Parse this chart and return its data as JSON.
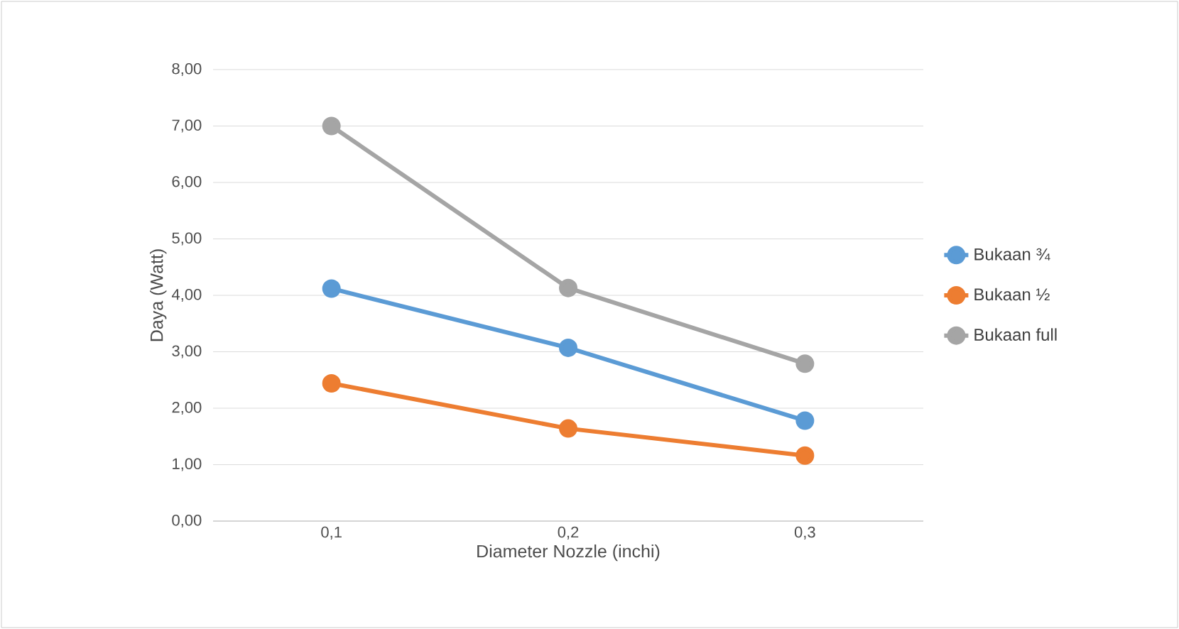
{
  "chart_data": {
    "type": "line",
    "xlabel": "Diameter Nozzle (inchi)",
    "ylabel": "Daya (Watt)",
    "categories": [
      "0,1",
      "0,2",
      "0,3"
    ],
    "series": [
      {
        "name": "Bukaan ¾",
        "color": "#5b9bd5",
        "values": [
          4.12,
          3.07,
          1.78
        ]
      },
      {
        "name": "Bukaan ½",
        "color": "#ed7d31",
        "values": [
          2.44,
          1.64,
          1.16
        ]
      },
      {
        "name": "Bukaan full",
        "color": "#a5a5a5",
        "values": [
          7.0,
          4.13,
          2.79
        ]
      }
    ],
    "ylim": [
      0,
      8
    ],
    "yticks": [
      {
        "value": 0,
        "label": "0,00"
      },
      {
        "value": 1,
        "label": "1,00"
      },
      {
        "value": 2,
        "label": "2,00"
      },
      {
        "value": 3,
        "label": "3,00"
      },
      {
        "value": 4,
        "label": "4,00"
      },
      {
        "value": 5,
        "label": "5,00"
      },
      {
        "value": 6,
        "label": "6,00"
      },
      {
        "value": 7,
        "label": "7,00"
      },
      {
        "value": 8,
        "label": "8,00"
      }
    ],
    "grid": "y",
    "legend": "right",
    "marker": "circle",
    "line_style": "solid"
  }
}
